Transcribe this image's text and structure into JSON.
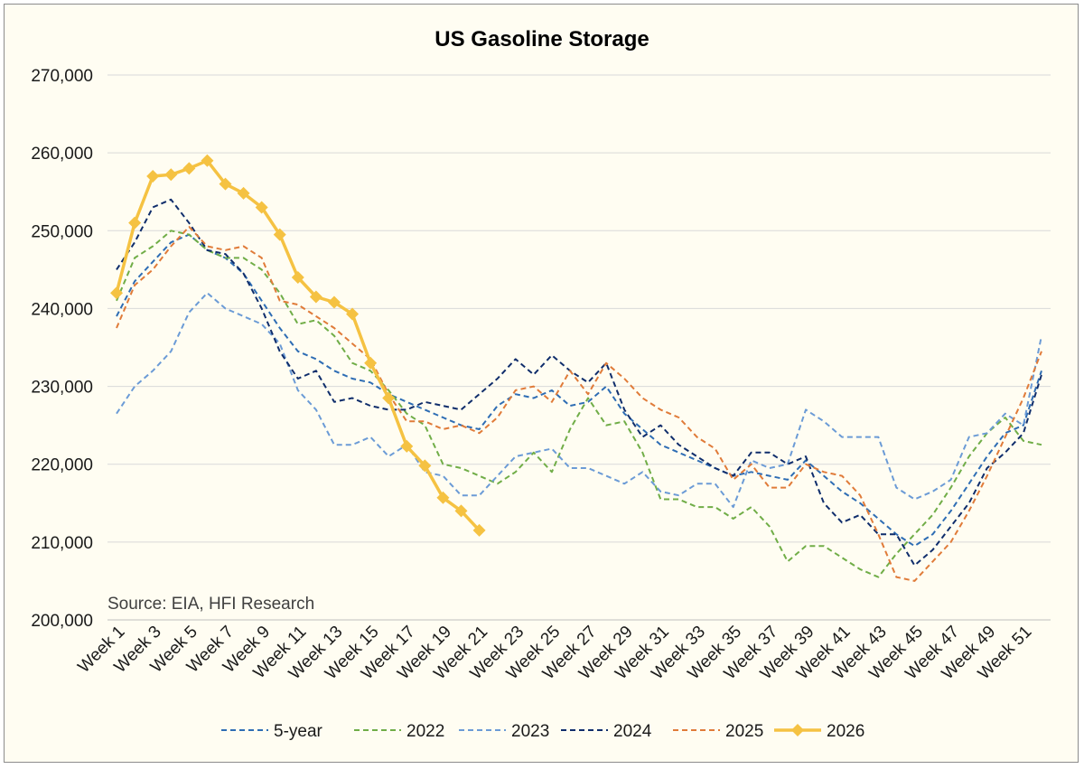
{
  "chart_data": {
    "type": "line",
    "title": "US Gasoline Storage",
    "source": "Source: EIA, HFI Research",
    "ylim": [
      200000,
      270000
    ],
    "y_ticks": [
      "200,000",
      "210,000",
      "220,000",
      "230,000",
      "240,000",
      "250,000",
      "260,000",
      "270,000"
    ],
    "y_tick_values": [
      200000,
      210000,
      220000,
      230000,
      240000,
      250000,
      260000,
      270000
    ],
    "x_tick_labels": [
      "Week 1",
      "Week 3",
      "Week 5",
      "Week 7",
      "Week 9",
      "Week 11",
      "Week 13",
      "Week 15",
      "Week 17",
      "Week 19",
      "Week 21",
      "Week 23",
      "Week 25",
      "Week 27",
      "Week 29",
      "Week 31",
      "Week 33",
      "Week 35",
      "Week 37",
      "Week 39",
      "Week 41",
      "Week 43",
      "Week 45",
      "Week 47",
      "Week 49",
      "Week 51"
    ],
    "x_tick_weeks": [
      1,
      3,
      5,
      7,
      9,
      11,
      13,
      15,
      17,
      19,
      21,
      23,
      25,
      27,
      29,
      31,
      33,
      35,
      37,
      39,
      41,
      43,
      45,
      47,
      49,
      51
    ],
    "weeks": 52,
    "grid": true,
    "legend_position": "bottom",
    "series": [
      {
        "name": "5-year",
        "color": "#2e6db4",
        "style": "dashed",
        "values": [
          239000,
          243500,
          246000,
          248500,
          249500,
          247500,
          246500,
          244500,
          241000,
          237500,
          234500,
          233500,
          232000,
          231000,
          230500,
          229000,
          228000,
          227000,
          226000,
          225000,
          224500,
          227500,
          229000,
          228500,
          229500,
          227500,
          228000,
          230000,
          226500,
          224500,
          222500,
          221500,
          220500,
          219500,
          218500,
          219000,
          218500,
          218000,
          220500,
          218500,
          216500,
          215000,
          213000,
          211000,
          209500,
          211000,
          214000,
          217500,
          221000,
          224000,
          225000,
          232000
        ]
      },
      {
        "name": "2022",
        "color": "#70ad47",
        "style": "dashed",
        "values": [
          241000,
          246500,
          248000,
          250000,
          249500,
          247500,
          246500,
          246500,
          245000,
          242000,
          238000,
          238500,
          236500,
          233000,
          232000,
          229500,
          226500,
          225000,
          220000,
          219500,
          218500,
          217500,
          219000,
          221500,
          219000,
          224500,
          228500,
          225000,
          225500,
          221500,
          215500,
          215500,
          214500,
          214500,
          213000,
          214500,
          212000,
          207500,
          209500,
          209500,
          208000,
          206500,
          205500,
          208500,
          211000,
          213500,
          217000,
          221000,
          224000,
          226000,
          223000,
          222500
        ]
      },
      {
        "name": "2023",
        "color": "#6b9bd6",
        "style": "dashed",
        "values": [
          226500,
          230000,
          232000,
          234500,
          239500,
          242000,
          240000,
          239000,
          238000,
          235500,
          229500,
          227000,
          222500,
          222500,
          223500,
          221000,
          222500,
          219000,
          218500,
          216000,
          216000,
          218500,
          221000,
          221500,
          222000,
          219500,
          219500,
          218500,
          217500,
          219000,
          216500,
          216000,
          217500,
          217500,
          214500,
          220500,
          219500,
          220000,
          227000,
          225500,
          223500,
          223500,
          223500,
          217000,
          215500,
          216500,
          218000,
          223500,
          224000,
          226500,
          225000,
          236500
        ]
      },
      {
        "name": "2024",
        "color": "#0f2d6b",
        "style": "dashed",
        "values": [
          245000,
          248500,
          253000,
          254000,
          251000,
          247500,
          247000,
          244500,
          240000,
          234500,
          231000,
          232000,
          228000,
          228500,
          227500,
          227000,
          227000,
          228000,
          227500,
          227000,
          229000,
          231000,
          233500,
          231500,
          234000,
          232000,
          230500,
          233000,
          227000,
          223500,
          225000,
          222500,
          221000,
          219500,
          218500,
          221500,
          221500,
          220000,
          221000,
          215000,
          212500,
          213500,
          211000,
          211000,
          207000,
          209000,
          212000,
          215000,
          219500,
          221500,
          224000,
          231500
        ]
      },
      {
        "name": "2025",
        "color": "#e07b39",
        "style": "dashed",
        "values": [
          237500,
          243000,
          245000,
          248000,
          250500,
          248000,
          247500,
          248000,
          246500,
          241000,
          240500,
          239000,
          237500,
          235500,
          233500,
          229000,
          225500,
          225500,
          224500,
          225000,
          224000,
          226000,
          229500,
          230000,
          228000,
          232000,
          229000,
          233000,
          231000,
          228500,
          227000,
          226000,
          223500,
          222000,
          218000,
          220000,
          217000,
          217000,
          220000,
          219000,
          218500,
          216000,
          211000,
          205500,
          205000,
          207500,
          210000,
          214000,
          218500,
          223500,
          228500,
          234500
        ]
      },
      {
        "name": "2026",
        "color": "#f5c242",
        "style": "solid",
        "values": [
          242000,
          251000,
          257000,
          257200,
          258000,
          259000,
          256000,
          254800,
          253000,
          249500,
          244000,
          241500,
          240800,
          239300,
          233000,
          228500,
          222300,
          219800,
          215700,
          214000,
          211500
        ]
      }
    ]
  }
}
